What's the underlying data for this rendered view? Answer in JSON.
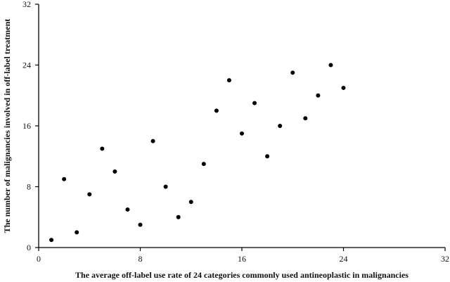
{
  "chart_data": {
    "type": "scatter",
    "title": "",
    "xlabel": "The average off-label use rate of 24 categories commonly used antineoplastic in malignancies",
    "ylabel": "The number of malignancies involved in off-label treatment",
    "xlim": [
      0,
      32
    ],
    "ylim": [
      0,
      32
    ],
    "xticks": [
      "0",
      "8",
      "16",
      "24",
      "32"
    ],
    "yticks": [
      "0",
      "8",
      "16",
      "24",
      "32"
    ],
    "grid": false,
    "marker_color": "#000000",
    "points": [
      {
        "x": 1,
        "y": 1
      },
      {
        "x": 2,
        "y": 9
      },
      {
        "x": 3,
        "y": 2
      },
      {
        "x": 4,
        "y": 7
      },
      {
        "x": 5,
        "y": 13
      },
      {
        "x": 6,
        "y": 10
      },
      {
        "x": 7,
        "y": 5
      },
      {
        "x": 8,
        "y": 3
      },
      {
        "x": 9,
        "y": 14
      },
      {
        "x": 10,
        "y": 8
      },
      {
        "x": 11,
        "y": 4
      },
      {
        "x": 12,
        "y": 6
      },
      {
        "x": 13,
        "y": 11
      },
      {
        "x": 14,
        "y": 18
      },
      {
        "x": 15,
        "y": 22
      },
      {
        "x": 16,
        "y": 15
      },
      {
        "x": 17,
        "y": 19
      },
      {
        "x": 18,
        "y": 12
      },
      {
        "x": 19,
        "y": 16
      },
      {
        "x": 20,
        "y": 23
      },
      {
        "x": 21,
        "y": 17
      },
      {
        "x": 22,
        "y": 20
      },
      {
        "x": 23,
        "y": 24
      },
      {
        "x": 24,
        "y": 21
      }
    ]
  }
}
